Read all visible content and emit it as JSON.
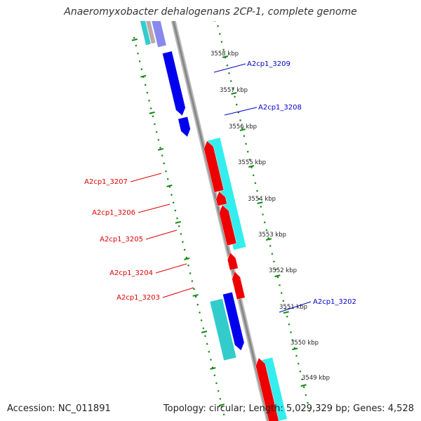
{
  "title": "Anaeromyxobacter dehalogenans 2CP-1, complete genome",
  "footer": {
    "accession": "Accession: NC_011891",
    "summary": "Topology: circular; Length: 5,029,329 bp; Genes: 4,528"
  },
  "ruler": {
    "unit": "kbp",
    "labels": [
      "3558 kbp",
      "3557 kbp",
      "3556 kbp",
      "3555 kbp",
      "3554 kbp",
      "3553 kbp",
      "3552 kbp",
      "3551 kbp",
      "3550 kbp",
      "3549 kbp"
    ]
  },
  "genes": {
    "forward": [
      {
        "name": "A2cp1_3209"
      },
      {
        "name": "A2cp1_3208"
      },
      {
        "name": "A2cp1_3202"
      }
    ],
    "reverse": [
      {
        "name": "A2cp1_3207"
      },
      {
        "name": "A2cp1_3206"
      },
      {
        "name": "A2cp1_3205"
      },
      {
        "name": "A2cp1_3204"
      },
      {
        "name": "A2cp1_3203"
      }
    ]
  },
  "colors": {
    "forward_gene": "#0000ee",
    "forward_cds": "#33cccc",
    "reverse_gene": "#ee0000",
    "reverse_cds": "#33eeee",
    "backbone": "#888888",
    "tick": "#118811",
    "forward_label": "#0000cc",
    "reverse_label": "#dd0000"
  }
}
